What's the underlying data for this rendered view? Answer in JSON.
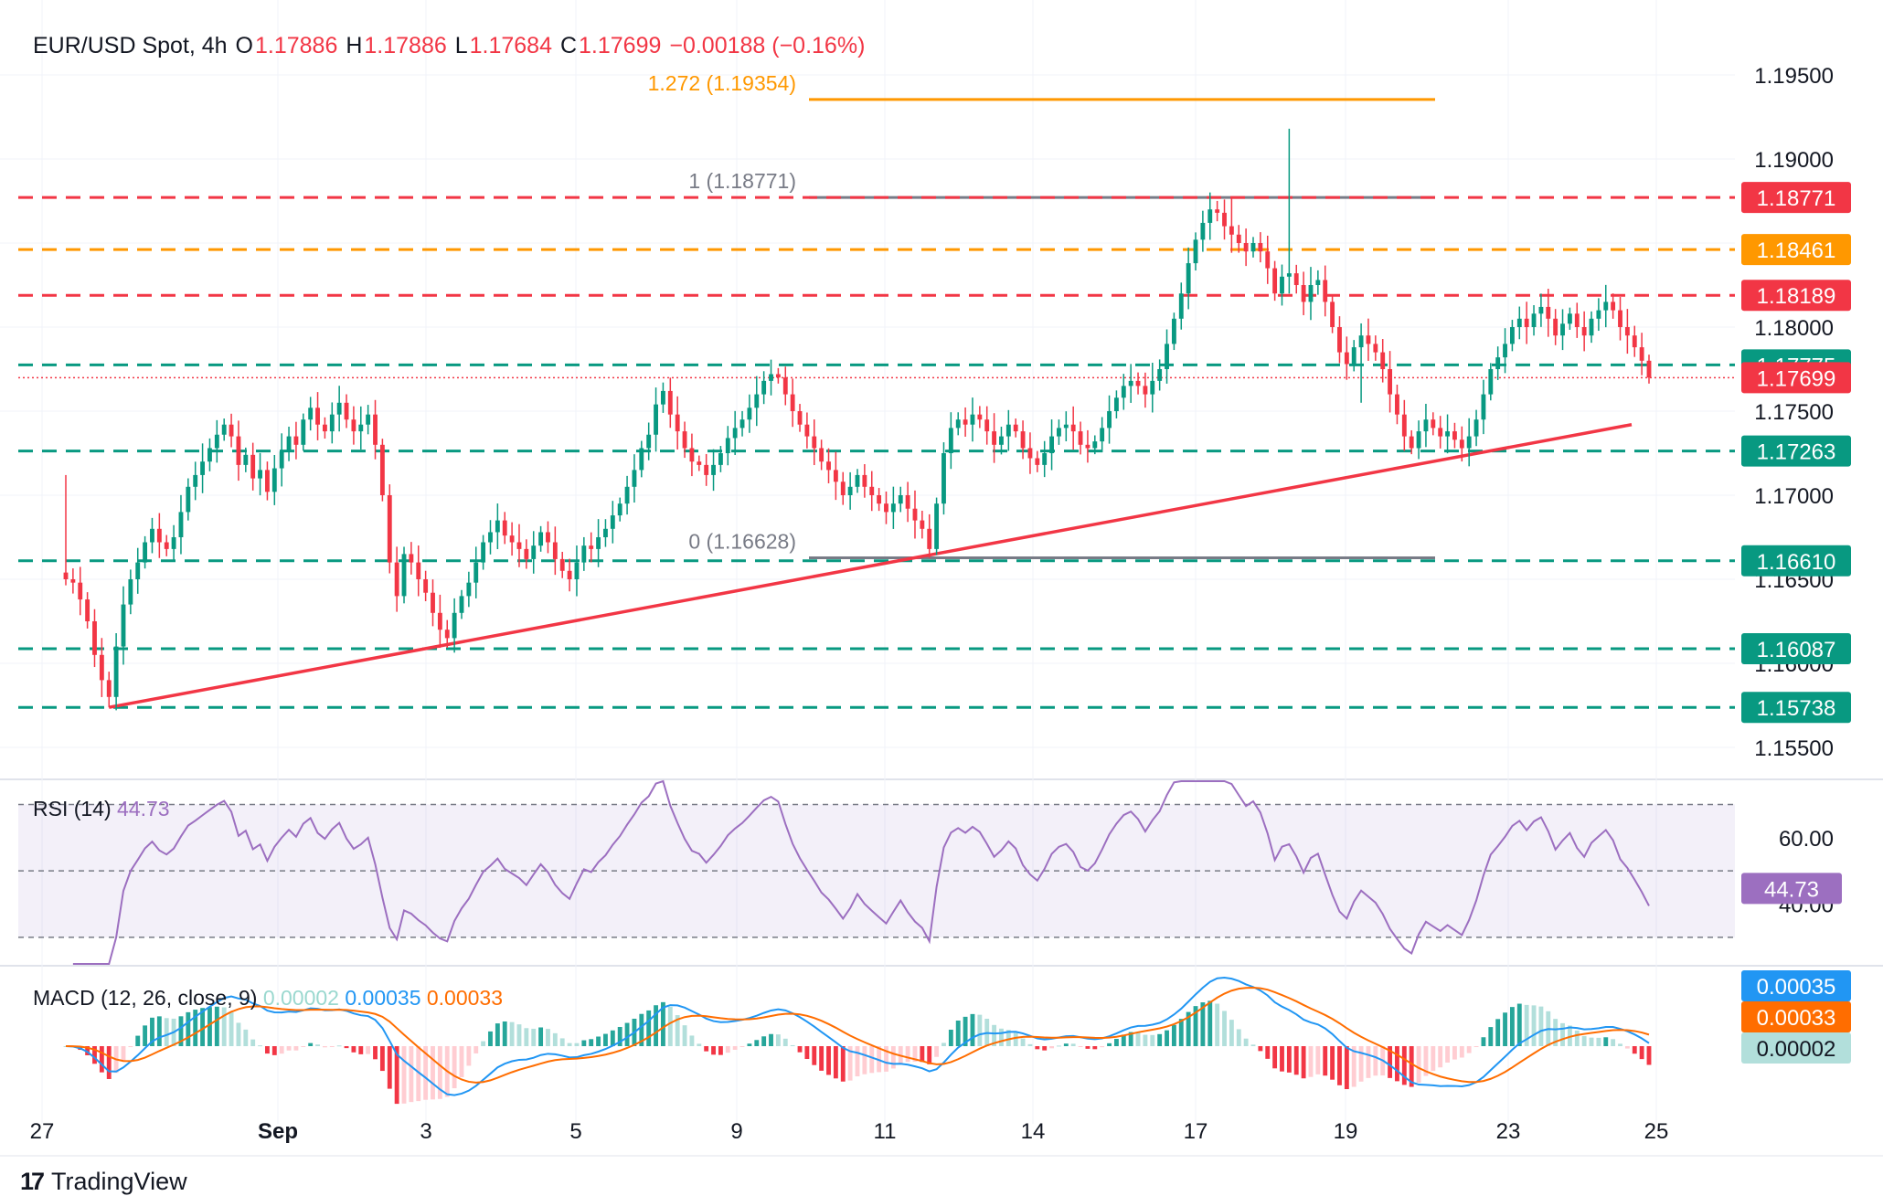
{
  "header": {
    "symbol": "EUR/USD Spot, 4h",
    "open_label": "O",
    "open": "1.17886",
    "high_label": "H",
    "high": "1.17886",
    "low_label": "L",
    "low": "1.17684",
    "close_label": "C",
    "close": "1.17699",
    "change": "−0.00188 (−0.16%)"
  },
  "chart_data": {
    "type": "candlestick",
    "timeframe": "4h",
    "x_ticks": [
      "27",
      "Sep",
      "3",
      "5",
      "9",
      "11",
      "14",
      "17",
      "19",
      "23",
      "25"
    ],
    "price_axis": {
      "ticks": [
        "1.19500",
        "1.19000",
        "1.18000",
        "1.17500",
        "1.17000",
        "1.16500",
        "1.16000",
        "1.15500"
      ],
      "range": [
        1.1528,
        1.1978
      ]
    },
    "levels": [
      {
        "value": 1.18771,
        "label": "1.18771",
        "color": "#f23645",
        "style": "dashed"
      },
      {
        "value": 1.18461,
        "label": "1.18461",
        "color": "#ff9800",
        "style": "dashed"
      },
      {
        "value": 1.18189,
        "label": "1.18189",
        "color": "#f23645",
        "style": "dashed"
      },
      {
        "value": 1.17775,
        "label": "1.17775",
        "color": "#089981",
        "style": "dashed"
      },
      {
        "value": 1.17699,
        "label": "1.17699",
        "color": "#f23645",
        "style": "dotted"
      },
      {
        "value": 1.17263,
        "label": "1.17263",
        "color": "#089981",
        "style": "dashed"
      },
      {
        "value": 1.1661,
        "label": "1.16610",
        "color": "#089981",
        "style": "dashed"
      },
      {
        "value": 1.16087,
        "label": "1.16087",
        "color": "#089981",
        "style": "dashed"
      },
      {
        "value": 1.15738,
        "label": "1.15738",
        "color": "#089981",
        "style": "dashed"
      }
    ],
    "fibonacci": [
      {
        "label": "1.272 (1.19354)",
        "value": 1.19354,
        "color": "#ff9800"
      },
      {
        "label": "1 (1.18771)",
        "value": 1.18771,
        "color": "#787b86"
      },
      {
        "label": "0 (1.16628)",
        "value": 1.16628,
        "color": "#787b86"
      }
    ],
    "trendline": {
      "from": {
        "bar": 6,
        "price": 1.15738
      },
      "to": {
        "bar": 224,
        "price": 1.1742
      },
      "color": "#f23645"
    },
    "close_series": [
      1.165,
      1.1648,
      1.1638,
      1.1625,
      1.1605,
      1.159,
      1.158,
      1.161,
      1.1635,
      1.165,
      1.166,
      1.1672,
      1.168,
      1.1672,
      1.1668,
      1.1675,
      1.169,
      1.1705,
      1.1712,
      1.172,
      1.1728,
      1.1736,
      1.1742,
      1.1735,
      1.1718,
      1.1724,
      1.171,
      1.1715,
      1.1702,
      1.1716,
      1.1726,
      1.1735,
      1.173,
      1.1745,
      1.1752,
      1.1742,
      1.1738,
      1.1748,
      1.1755,
      1.1745,
      1.1738,
      1.1742,
      1.1748,
      1.173,
      1.17,
      1.166,
      1.164,
      1.1665,
      1.166,
      1.165,
      1.1642,
      1.163,
      1.162,
      1.1615,
      1.163,
      1.164,
      1.1648,
      1.166,
      1.1672,
      1.1678,
      1.1685,
      1.1676,
      1.1672,
      1.1668,
      1.1662,
      1.167,
      1.1678,
      1.1672,
      1.1662,
      1.1655,
      1.165,
      1.166,
      1.167,
      1.1668,
      1.1675,
      1.168,
      1.1688,
      1.1695,
      1.1705,
      1.1715,
      1.1728,
      1.1736,
      1.1754,
      1.1762,
      1.1748,
      1.1738,
      1.1728,
      1.172,
      1.1718,
      1.1712,
      1.1718,
      1.1725,
      1.1734,
      1.174,
      1.1745,
      1.1752,
      1.176,
      1.1768,
      1.1772,
      1.177,
      1.176,
      1.175,
      1.1742,
      1.1735,
      1.1728,
      1.172,
      1.1715,
      1.1708,
      1.17,
      1.1705,
      1.1712,
      1.1705,
      1.17,
      1.1695,
      1.169,
      1.1695,
      1.17,
      1.1692,
      1.1685,
      1.168,
      1.1668,
      1.1695,
      1.1725,
      1.174,
      1.1745,
      1.1742,
      1.1748,
      1.1745,
      1.1738,
      1.173,
      1.1735,
      1.1742,
      1.1738,
      1.1728,
      1.1722,
      1.1718,
      1.1725,
      1.1735,
      1.174,
      1.1742,
      1.1738,
      1.173,
      1.1728,
      1.1732,
      1.174,
      1.175,
      1.1758,
      1.1765,
      1.1768,
      1.1765,
      1.176,
      1.1768,
      1.1775,
      1.179,
      1.1805,
      1.182,
      1.1838,
      1.1852,
      1.1862,
      1.187,
      1.1868,
      1.186,
      1.1855,
      1.185,
      1.1845,
      1.185,
      1.1845,
      1.1835,
      1.182,
      1.183,
      1.1832,
      1.1825,
      1.1815,
      1.1825,
      1.1828,
      1.1815,
      1.18,
      1.1785,
      1.1778,
      1.1788,
      1.1795,
      1.179,
      1.1785,
      1.1775,
      1.176,
      1.1748,
      1.1735,
      1.1728,
      1.1738,
      1.1745,
      1.174,
      1.1735,
      1.1738,
      1.1733,
      1.1728,
      1.1735,
      1.1745,
      1.176,
      1.1775,
      1.1782,
      1.179,
      1.18,
      1.1805,
      1.18,
      1.1808,
      1.1812,
      1.1805,
      1.1795,
      1.1802,
      1.1808,
      1.18,
      1.1795,
      1.1805,
      1.181,
      1.1815,
      1.181,
      1.18,
      1.1795,
      1.1788,
      1.178,
      1.177
    ],
    "rsi": {
      "label": "RSI (14)",
      "value": "44.73",
      "ticks": [
        "60.00",
        "40.00"
      ],
      "bands": [
        70,
        50,
        30
      ],
      "range": [
        22,
        77
      ]
    },
    "macd": {
      "label": "MACD (12, 26, close, 9)",
      "histogram": "0.00002",
      "macd": "0.00035",
      "signal": "0.00033",
      "colors": {
        "histogram": "#b2dfdb",
        "macd": "#2196f3",
        "signal": "#ff6d00"
      }
    }
  },
  "branding": {
    "logo_mark": "17",
    "name": "TradingView"
  }
}
